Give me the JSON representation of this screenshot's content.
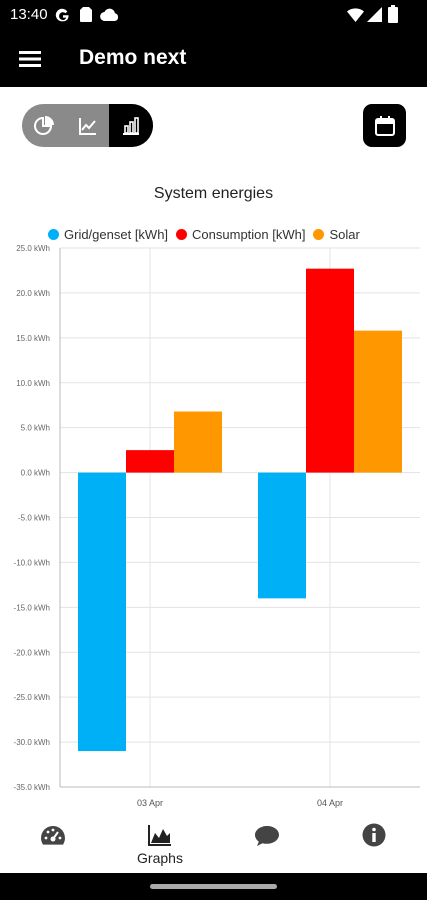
{
  "status_bar": {
    "time": "13:40",
    "icons": [
      "google-icon",
      "sim-icon",
      "cloud-icon",
      "wifi-icon",
      "signal-icon",
      "battery-icon"
    ]
  },
  "app_bar": {
    "title": "Demo next",
    "menu_icon": "menu-icon"
  },
  "view_toggle": {
    "options": [
      "pie-chart-icon",
      "line-chart-icon",
      "bar-chart-icon"
    ],
    "selected": "bar-chart-icon"
  },
  "calendar_button": {
    "icon": "calendar-icon"
  },
  "chart_data": {
    "type": "bar",
    "title": "System energies",
    "categories": [
      "03 Apr",
      "04 Apr"
    ],
    "series": [
      {
        "name": "Grid/genset [kWh]",
        "color": "#00b0f6",
        "values": [
          -31.0,
          -14.0
        ]
      },
      {
        "name": "Consumption [kWh]",
        "color": "#ff0000",
        "values": [
          2.5,
          22.7
        ]
      },
      {
        "name": "Solar",
        "color": "#ff9800",
        "values": [
          6.8,
          15.8
        ]
      }
    ],
    "ylim": [
      -35,
      25
    ],
    "yticks": [
      -35,
      -30,
      -25,
      -20,
      -15,
      -10,
      -5,
      0,
      5,
      10,
      15,
      20,
      25
    ],
    "ytick_labels": [
      "-35.0 kWh",
      "-30.0 kWh",
      "-25.0 kWh",
      "-20.0 kWh",
      "-15.0 kWh",
      "-10.0 kWh",
      "-5.0 kWh",
      "0.0 kWh",
      "5.0 kWh",
      "10.0 kWh",
      "15.0 kWh",
      "20.0 kWh",
      "25.0 kWh"
    ],
    "legend_position": "top",
    "grid": true
  },
  "bottom_nav": {
    "items": [
      {
        "icon": "dashboard-icon",
        "label": ""
      },
      {
        "icon": "graphs-icon",
        "label": "Graphs"
      },
      {
        "icon": "chat-icon",
        "label": ""
      },
      {
        "icon": "info-icon",
        "label": ""
      }
    ],
    "active": "Graphs"
  }
}
